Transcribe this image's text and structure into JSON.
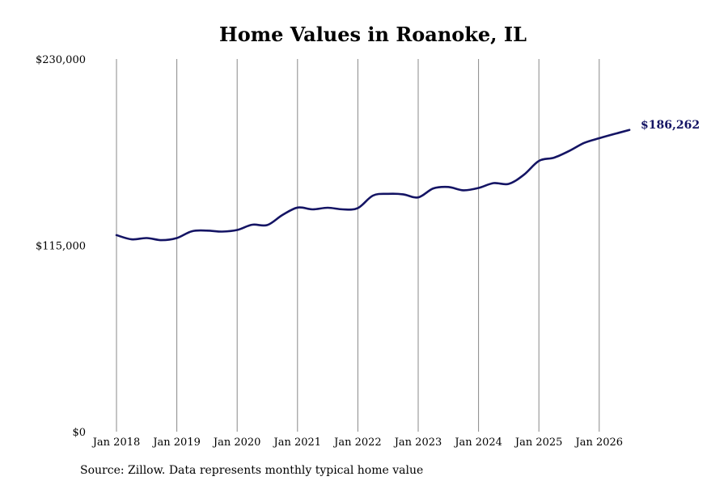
{
  "chart_data": {
    "type": "line",
    "title": "Home Values in Roanoke, IL",
    "source": "Source: Zillow. Data represents monthly typical home value",
    "ylim": [
      0,
      230000
    ],
    "y_ticks": [
      0,
      115000,
      230000
    ],
    "y_tick_labels": [
      "$0",
      "$115,000",
      "$230,000"
    ],
    "x_range": [
      2018.0,
      2026.55
    ],
    "x_ticks": [
      2018,
      2019,
      2020,
      2021,
      2022,
      2023,
      2024,
      2025,
      2026
    ],
    "x_tick_labels": [
      "Jan 2018",
      "Jan 2019",
      "Jan 2020",
      "Jan 2021",
      "Jan 2022",
      "Jan 2023",
      "Jan 2024",
      "Jan 2025",
      "Jan 2026"
    ],
    "grid": "vertical",
    "line_color": "#141464",
    "grid_color": "#888888",
    "end_label": "$186,262",
    "series": [
      {
        "values": [
          [
            2018.0,
            121300
          ],
          [
            2018.25,
            118700
          ],
          [
            2018.5,
            119500
          ],
          [
            2018.75,
            118200
          ],
          [
            2019.0,
            119500
          ],
          [
            2019.25,
            123700
          ],
          [
            2019.5,
            124100
          ],
          [
            2019.75,
            123500
          ],
          [
            2020.0,
            124500
          ],
          [
            2020.25,
            127700
          ],
          [
            2020.5,
            127500
          ],
          [
            2020.75,
            133700
          ],
          [
            2021.0,
            138300
          ],
          [
            2021.25,
            137200
          ],
          [
            2021.5,
            138200
          ],
          [
            2021.75,
            137200
          ],
          [
            2022.0,
            138000
          ],
          [
            2022.25,
            145700
          ],
          [
            2022.5,
            146800
          ],
          [
            2022.75,
            146500
          ],
          [
            2023.0,
            144600
          ],
          [
            2023.25,
            150100
          ],
          [
            2023.5,
            151000
          ],
          [
            2023.75,
            149000
          ],
          [
            2024.0,
            150400
          ],
          [
            2024.25,
            153400
          ],
          [
            2024.5,
            152900
          ],
          [
            2024.75,
            158500
          ],
          [
            2025.0,
            167100
          ],
          [
            2025.25,
            169100
          ],
          [
            2025.5,
            173200
          ],
          [
            2025.75,
            178200
          ],
          [
            2026.0,
            181100
          ],
          [
            2026.25,
            183700
          ],
          [
            2026.5,
            186262
          ]
        ]
      }
    ]
  }
}
